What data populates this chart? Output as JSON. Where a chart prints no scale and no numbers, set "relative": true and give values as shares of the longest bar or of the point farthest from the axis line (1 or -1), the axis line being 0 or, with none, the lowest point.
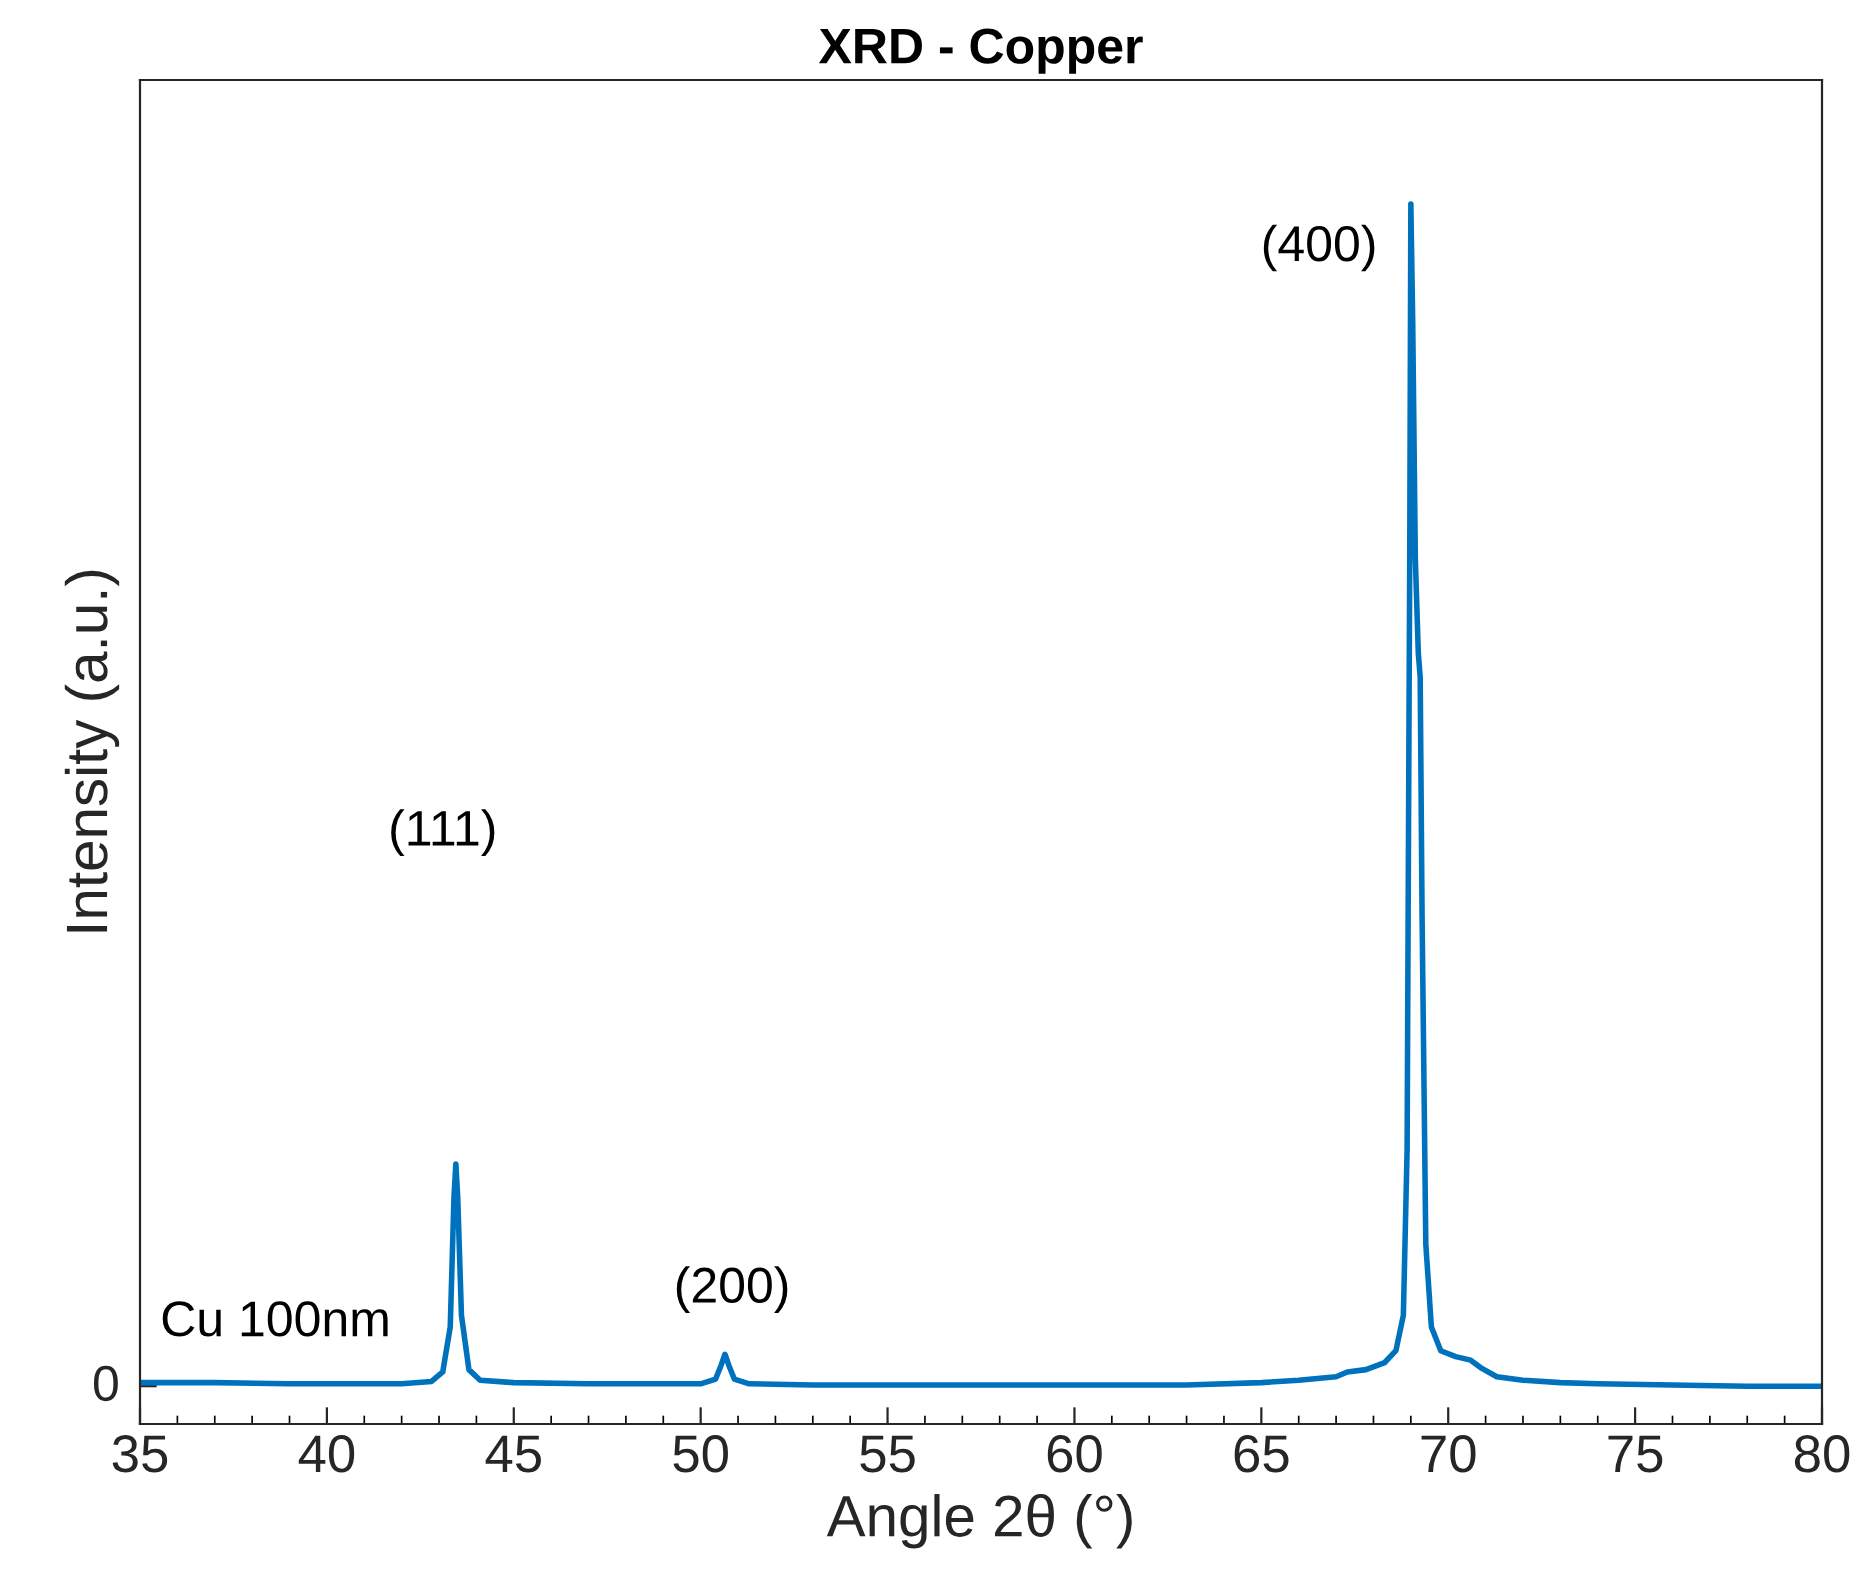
{
  "chart_data": {
    "type": "line",
    "title": "XRD - Copper",
    "xlabel": "Angle 2θ (°)",
    "ylabel": "Intensity (a.u.)",
    "relative": true,
    "x": [
      35,
      37,
      39,
      41,
      42,
      42.8,
      43.1,
      43.3,
      43.4,
      43.45,
      43.5,
      43.6,
      43.8,
      44.1,
      45,
      47,
      49,
      50,
      50.4,
      50.55,
      50.65,
      50.75,
      50.9,
      51.3,
      53,
      55,
      57,
      59,
      61,
      63,
      65,
      66,
      67,
      67.3,
      67.8,
      68.3,
      68.6,
      68.8,
      68.9,
      68.97,
      69.0,
      69.05,
      69.12,
      69.2,
      69.25,
      69.3,
      69.4,
      69.55,
      69.8,
      70.2,
      70.6,
      70.9,
      71.3,
      72,
      73,
      74,
      76,
      78,
      80
    ],
    "series": [
      {
        "color": "#0072bd",
        "values": [
          0.003,
          0.003,
          0.002,
          0.002,
          0.002,
          0.004,
          0.012,
          0.05,
          0.16,
          0.188,
          0.16,
          0.06,
          0.014,
          0.005,
          0.003,
          0.002,
          0.002,
          0.002,
          0.006,
          0.018,
          0.027,
          0.018,
          0.006,
          0.002,
          0.001,
          0.001,
          0.001,
          0.001,
          0.001,
          0.001,
          0.003,
          0.005,
          0.008,
          0.012,
          0.014,
          0.02,
          0.03,
          0.06,
          0.2,
          0.7,
          1.0,
          0.9,
          0.7,
          0.62,
          0.6,
          0.4,
          0.12,
          0.05,
          0.03,
          0.025,
          0.022,
          0.015,
          0.008,
          0.005,
          0.003,
          0.002,
          0.001,
          0.0,
          0.0
        ]
      }
    ],
    "xlim": [
      35,
      80
    ],
    "xticks": [
      35,
      40,
      45,
      50,
      55,
      60,
      65,
      70,
      75,
      80
    ],
    "grid": false,
    "legend": false,
    "annotations": [
      "(111)",
      "(200)",
      "(400)",
      "Cu 100nm",
      "0"
    ]
  }
}
